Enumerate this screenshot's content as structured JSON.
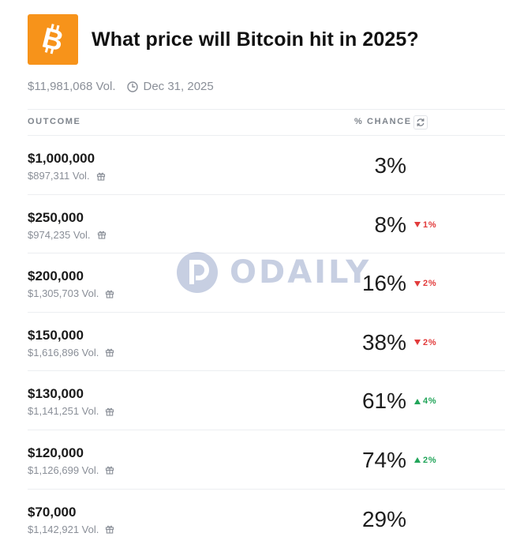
{
  "header": {
    "logo_icon": "bitcoin-icon",
    "title": "What price will Bitcoin hit in 2025?"
  },
  "meta": {
    "volume": "$11,981,068 Vol.",
    "date": "Dec 31, 2025"
  },
  "table": {
    "col_outcome": "OUTCOME",
    "col_chance": "% CHANCE",
    "rows": [
      {
        "price": "$1,000,000",
        "volume": "$897,311 Vol.",
        "chance": "3%",
        "change": "",
        "direction": "none"
      },
      {
        "price": "$250,000",
        "volume": "$974,235 Vol.",
        "chance": "8%",
        "change": "1%",
        "direction": "down"
      },
      {
        "price": "$200,000",
        "volume": "$1,305,703 Vol.",
        "chance": "16%",
        "change": "2%",
        "direction": "down"
      },
      {
        "price": "$150,000",
        "volume": "$1,616,896 Vol.",
        "chance": "38%",
        "change": "2%",
        "direction": "down"
      },
      {
        "price": "$130,000",
        "volume": "$1,141,251 Vol.",
        "chance": "61%",
        "change": "4%",
        "direction": "up"
      },
      {
        "price": "$120,000",
        "volume": "$1,126,699 Vol.",
        "chance": "74%",
        "change": "2%",
        "direction": "up"
      },
      {
        "price": "$70,000",
        "volume": "$1,142,921 Vol.",
        "chance": "29%",
        "change": "",
        "direction": "none"
      }
    ]
  },
  "watermark": {
    "text": "ODAILY"
  },
  "colors": {
    "brand": "#f7931a",
    "down": "#e23b3b",
    "up": "#22a55a"
  }
}
